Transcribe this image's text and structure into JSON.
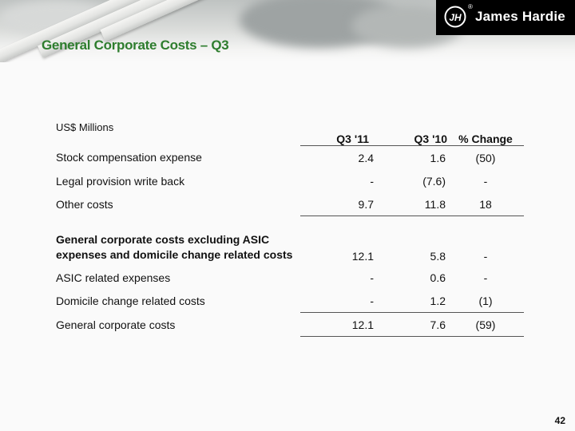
{
  "brand": {
    "name": "James Hardie",
    "reg_mark": "®",
    "logo_initials": "JH"
  },
  "page_title": "General Corporate Costs – Q3",
  "table": {
    "units_label": "US$ Millions",
    "headers": [
      "Q3 '11",
      "Q3 '10",
      "% Change"
    ],
    "rows": [
      {
        "label": "Stock compensation expense",
        "q3_11": "2.4",
        "q3_10": "1.6",
        "change": "(50)"
      },
      {
        "label": "Legal provision write back",
        "q3_11": "-",
        "q3_10": "(7.6)",
        "change": "-"
      },
      {
        "label": "Other costs",
        "q3_11": "9.7",
        "q3_10": "11.8",
        "change": "18"
      },
      {
        "label": "General corporate costs excluding ASIC expenses and domicile change related costs",
        "q3_11": "12.1",
        "q3_10": "5.8",
        "change": "-"
      },
      {
        "label": "ASIC related expenses",
        "q3_11": "-",
        "q3_10": "0.6",
        "change": "-"
      },
      {
        "label": "Domicile change related costs",
        "q3_11": "-",
        "q3_10": "1.2",
        "change": "(1)"
      },
      {
        "label": "General corporate costs",
        "q3_11": "12.1",
        "q3_10": "7.6",
        "change": "(59)"
      }
    ]
  },
  "page_number": "42"
}
